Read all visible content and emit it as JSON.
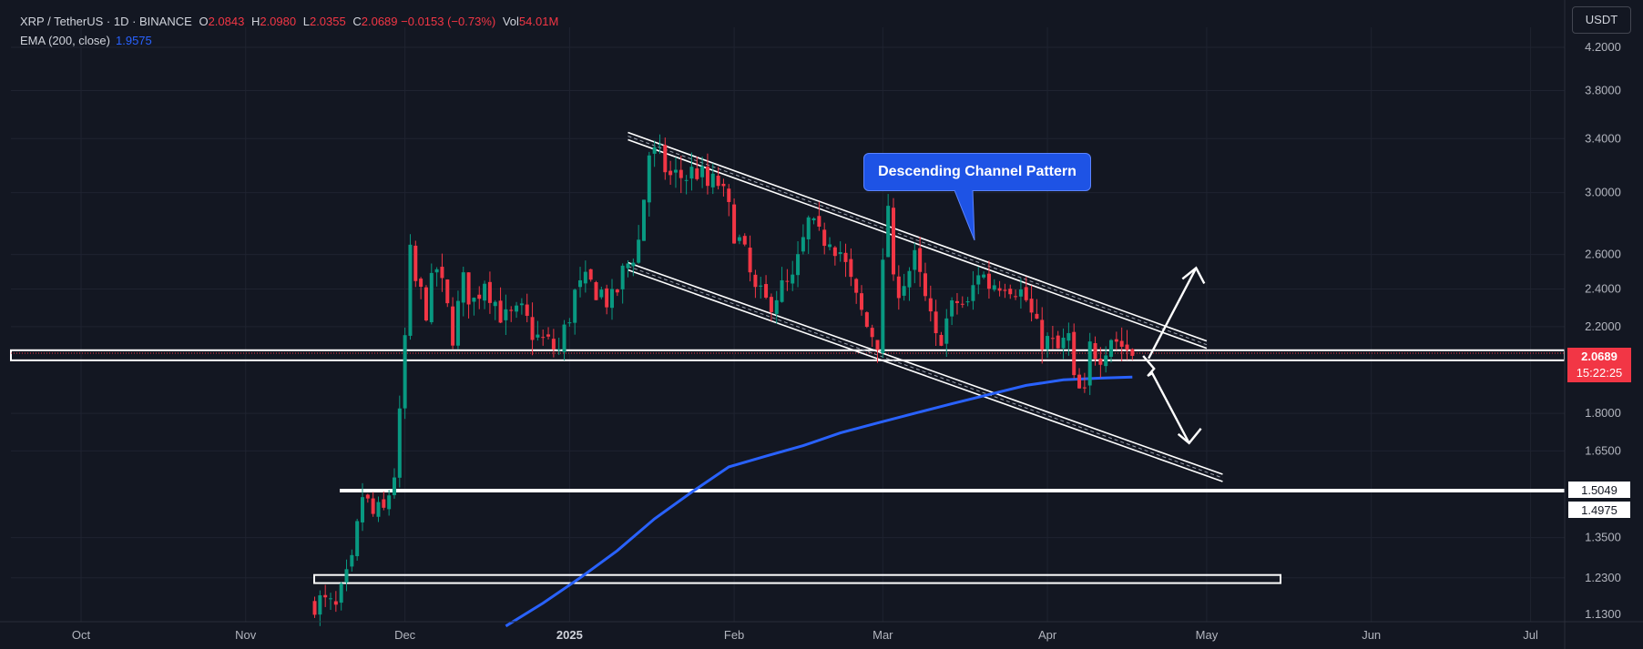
{
  "header": {
    "symbol": "XRP / TetherUS · 1D · BINANCE",
    "open_label": "O",
    "open": "2.0843",
    "high_label": "H",
    "high": "2.0980",
    "low_label": "L",
    "low": "2.0355",
    "close_label": "C",
    "close": "2.0689",
    "change": "−0.0153 (−0.73%)",
    "vol_label": "Vol",
    "vol": "54.01M",
    "ema_label": "EMA (200, close)",
    "ema_value": "1.9575"
  },
  "currency_button": "USDT",
  "annotation": "Descending Channel Pattern",
  "price_tags": {
    "last": "2.0689",
    "countdown": "15:22:25",
    "level1": "1.5049",
    "level2": "1.4975"
  },
  "colors": {
    "up": "#089981",
    "down": "#f23645",
    "ema": "#2962ff",
    "background": "#131722",
    "grid": "#1f2330",
    "annotation": "#ffffff"
  },
  "chart_data": {
    "type": "candlestick",
    "title": "XRP / TetherUS · 1D · BINANCE",
    "scale": "log",
    "ylim": [
      1.13,
      4.25
    ],
    "y_ticks": [
      4.2,
      3.8,
      3.4,
      3.0,
      2.6,
      2.4,
      2.2,
      2.0689,
      1.8,
      1.65,
      1.5049,
      1.4975,
      1.35,
      1.23,
      1.13
    ],
    "y_tick_labels": [
      "4.2000",
      "3.8000",
      "3.4000",
      "3.0000",
      "2.6000",
      "2.4000",
      "2.2000",
      "2.0689",
      "1.8000",
      "1.6500",
      "1.5049",
      "1.4975",
      "1.3500",
      "1.2300",
      "1.1300"
    ],
    "x_ticks": [
      {
        "date": "2024-10-01",
        "label": "Oct",
        "bold": false
      },
      {
        "date": "2024-11-01",
        "label": "Nov",
        "bold": false
      },
      {
        "date": "2024-12-01",
        "label": "Dec",
        "bold": false
      },
      {
        "date": "2025-01-01",
        "label": "2025",
        "bold": true
      },
      {
        "date": "2025-02-01",
        "label": "Feb",
        "bold": false
      },
      {
        "date": "2025-03-01",
        "label": "Mar",
        "bold": false
      },
      {
        "date": "2025-04-01",
        "label": "Apr",
        "bold": false
      },
      {
        "date": "2025-05-01",
        "label": "May",
        "bold": false
      },
      {
        "date": "2025-06-01",
        "label": "Jun",
        "bold": false
      },
      {
        "date": "2025-07-01",
        "label": "Jul",
        "bold": false
      }
    ],
    "series": [
      {
        "name": "XRP / TetherUS",
        "kind": "ohlc",
        "anchors": [
          [
            "2024-11-14",
            1.17
          ],
          [
            "2024-11-18",
            1.14
          ],
          [
            "2024-11-21",
            1.26
          ],
          [
            "2024-11-23",
            1.49
          ],
          [
            "2024-11-25",
            1.42
          ],
          [
            "2024-11-27",
            1.43
          ],
          [
            "2024-11-29",
            1.57
          ],
          [
            "2024-11-30",
            1.77
          ],
          [
            "2024-12-02",
            2.58
          ],
          [
            "2024-12-03",
            2.43
          ],
          [
            "2024-12-05",
            2.3
          ],
          [
            "2024-12-07",
            2.52
          ],
          [
            "2024-12-10",
            2.17
          ],
          [
            "2024-12-12",
            2.43
          ],
          [
            "2024-12-14",
            2.33
          ],
          [
            "2024-12-16",
            2.47
          ],
          [
            "2024-12-18",
            2.33
          ],
          [
            "2024-12-20",
            2.23
          ],
          [
            "2024-12-23",
            2.26
          ],
          [
            "2024-12-26",
            2.14
          ],
          [
            "2024-12-30",
            2.08
          ],
          [
            "2025-01-02",
            2.37
          ],
          [
            "2025-01-04",
            2.42
          ],
          [
            "2025-01-06",
            2.41
          ],
          [
            "2025-01-09",
            2.32
          ],
          [
            "2025-01-11",
            2.48
          ],
          [
            "2025-01-14",
            2.68
          ],
          [
            "2025-01-16",
            3.29
          ],
          [
            "2025-01-18",
            3.25
          ],
          [
            "2025-01-20",
            3.11
          ],
          [
            "2025-01-23",
            3.12
          ],
          [
            "2025-01-25",
            3.16
          ],
          [
            "2025-01-27",
            3.04
          ],
          [
            "2025-01-29",
            3.07
          ],
          [
            "2025-01-31",
            2.86
          ],
          [
            "2025-02-03",
            2.58
          ],
          [
            "2025-02-05",
            2.37
          ],
          [
            "2025-02-07",
            2.32
          ],
          [
            "2025-02-09",
            2.38
          ],
          [
            "2025-02-12",
            2.43
          ],
          [
            "2025-02-15",
            2.79
          ],
          [
            "2025-02-17",
            2.69
          ],
          [
            "2025-02-19",
            2.73
          ],
          [
            "2025-02-21",
            2.62
          ],
          [
            "2025-02-24",
            2.33
          ],
          [
            "2025-02-26",
            2.2
          ],
          [
            "2025-02-28",
            2.14
          ],
          [
            "2025-03-02",
            2.93
          ],
          [
            "2025-03-03",
            2.4
          ],
          [
            "2025-03-05",
            2.46
          ],
          [
            "2025-03-07",
            2.56
          ],
          [
            "2025-03-09",
            2.33
          ],
          [
            "2025-03-11",
            2.12
          ],
          [
            "2025-03-13",
            2.23
          ],
          [
            "2025-03-15",
            2.33
          ],
          [
            "2025-03-17",
            2.3
          ],
          [
            "2025-03-19",
            2.51
          ],
          [
            "2025-03-21",
            2.43
          ],
          [
            "2025-03-24",
            2.46
          ],
          [
            "2025-03-26",
            2.42
          ],
          [
            "2025-03-28",
            2.34
          ],
          [
            "2025-03-30",
            2.17
          ],
          [
            "2025-04-01",
            2.12
          ],
          [
            "2025-04-03",
            2.08
          ],
          [
            "2025-04-05",
            2.14
          ],
          [
            "2025-04-06",
            1.92
          ],
          [
            "2025-04-08",
            1.86
          ],
          [
            "2025-04-09",
            2.09
          ],
          [
            "2025-04-11",
            2.08
          ],
          [
            "2025-04-13",
            2.16
          ],
          [
            "2025-04-15",
            2.11
          ],
          [
            "2025-04-17",
            2.07
          ]
        ]
      },
      {
        "name": "EMA (200, close)",
        "kind": "line",
        "points": [
          [
            "2024-12-20",
            1.1
          ],
          [
            "2024-12-27",
            1.16
          ],
          [
            "2025-01-03",
            1.23
          ],
          [
            "2025-01-10",
            1.31
          ],
          [
            "2025-01-17",
            1.41
          ],
          [
            "2025-01-24",
            1.5
          ],
          [
            "2025-01-31",
            1.59
          ],
          [
            "2025-02-07",
            1.63
          ],
          [
            "2025-02-14",
            1.67
          ],
          [
            "2025-02-21",
            1.72
          ],
          [
            "2025-02-28",
            1.76
          ],
          [
            "2025-03-07",
            1.8
          ],
          [
            "2025-03-14",
            1.84
          ],
          [
            "2025-03-21",
            1.88
          ],
          [
            "2025-03-28",
            1.92
          ],
          [
            "2025-04-04",
            1.945
          ],
          [
            "2025-04-11",
            1.953
          ],
          [
            "2025-04-17",
            1.9575
          ]
        ]
      }
    ],
    "drawings": {
      "channel_upper": [
        [
          "2025-01-12",
          3.42
        ],
        [
          "2025-05-01",
          2.11
        ]
      ],
      "channel_lower": [
        [
          "2025-01-12",
          2.53
        ],
        [
          "2025-05-04",
          1.55
        ]
      ],
      "support_zone": [
        2.035,
        2.083
      ],
      "support_line": 1.5049,
      "lower_box": [
        1.215,
        1.238
      ],
      "arrow_up": [
        [
          "2025-04-18",
          2.07
        ],
        [
          "2025-04-29",
          2.52
        ]
      ],
      "arrow_down": [
        [
          "2025-04-18",
          2.03
        ],
        [
          "2025-04-27",
          1.68
        ]
      ]
    }
  }
}
